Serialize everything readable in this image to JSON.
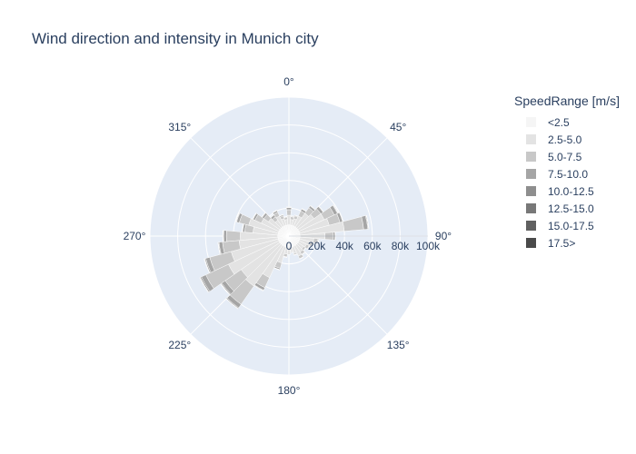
{
  "chart_data": {
    "type": "barpolar",
    "title": "Wind direction and intensity in Munich city",
    "radial_axis": {
      "range": [
        0,
        100000
      ],
      "ticks": [
        0,
        20000,
        40000,
        60000,
        80000,
        100000
      ],
      "tick_labels": [
        "0",
        "20k",
        "40k",
        "60k",
        "80k",
        "100k"
      ],
      "angle_deg": 90
    },
    "angular_axis": {
      "rotation": 90,
      "direction": "clockwise",
      "ticks": [
        0,
        45,
        90,
        135,
        180,
        225,
        270,
        315
      ],
      "tick_labels": [
        "0°",
        "45°",
        "90°",
        "135°",
        "180°",
        "225°",
        "270°",
        "315°"
      ]
    },
    "legend": {
      "title": "SpeedRange [m/s]",
      "placement": "right"
    },
    "directions": [
      0,
      10,
      20,
      30,
      40,
      50,
      60,
      70,
      80,
      90,
      100,
      110,
      120,
      130,
      140,
      150,
      160,
      170,
      180,
      190,
      200,
      210,
      220,
      230,
      240,
      250,
      260,
      270,
      280,
      290,
      300,
      310,
      320,
      330,
      340,
      350
    ],
    "series": [
      {
        "name": "<2.5",
        "color": "#f5f5f5",
        "values": [
          8000,
          8000,
          8000,
          8000,
          8000,
          8000,
          8000,
          8000,
          8000,
          8000,
          8000,
          8000,
          8000,
          8000,
          8000,
          8000,
          8000,
          8000,
          8000,
          8000,
          8000,
          8000,
          8000,
          8000,
          8000,
          8000,
          8000,
          8000,
          8000,
          8000,
          8000,
          8000,
          8000,
          8000,
          8000,
          8000
        ]
      },
      {
        "name": "2.5-5.0",
        "color": "#e3e3e3",
        "values": [
          7000,
          4000,
          5000,
          8000,
          12000,
          14000,
          20000,
          22000,
          32000,
          18000,
          10000,
          8000,
          6000,
          5000,
          6000,
          8000,
          5000,
          3000,
          4000,
          5000,
          12000,
          25000,
          36000,
          34000,
          40000,
          35000,
          28000,
          27000,
          18000,
          22000,
          14000,
          10000,
          6000,
          8000,
          5000,
          4000
        ]
      },
      {
        "name": "5.0-7.5",
        "color": "#c8c8c8",
        "values": [
          4000,
          2000,
          2000,
          4000,
          5000,
          6000,
          8000,
          8000,
          14000,
          6000,
          3000,
          2000,
          2000,
          1500,
          2000,
          2000,
          1000,
          800,
          1000,
          2000,
          4000,
          8000,
          16000,
          14000,
          18000,
          16000,
          12000,
          10000,
          6000,
          7000,
          5000,
          4000,
          3000,
          3000,
          2000,
          1500
        ]
      },
      {
        "name": "7.5-10.0",
        "color": "#a5a5a5",
        "values": [
          1500,
          500,
          500,
          1500,
          1500,
          2000,
          2500,
          2000,
          3000,
          1200,
          500,
          400,
          400,
          300,
          300,
          300,
          200,
          150,
          200,
          300,
          1000,
          2000,
          3000,
          3000,
          3500,
          3000,
          2500,
          2000,
          1500,
          2000,
          1500,
          1500,
          1500,
          1200,
          800,
          500
        ]
      },
      {
        "name": "10.0-12.5",
        "color": "#8e8e8e",
        "values": [
          300,
          100,
          100,
          300,
          300,
          300,
          400,
          300,
          500,
          200,
          100,
          100,
          80,
          60,
          60,
          60,
          40,
          30,
          40,
          60,
          200,
          400,
          600,
          600,
          800,
          700,
          500,
          400,
          300,
          400,
          300,
          300,
          300,
          300,
          200,
          100
        ]
      },
      {
        "name": "12.5-15.0",
        "color": "#787878",
        "values": [
          100,
          40,
          40,
          100,
          100,
          100,
          150,
          100,
          200,
          80,
          40,
          40,
          30,
          20,
          20,
          20,
          15,
          10,
          15,
          20,
          80,
          150,
          250,
          250,
          350,
          300,
          200,
          150,
          100,
          150,
          100,
          100,
          100,
          100,
          80,
          40
        ]
      },
      {
        "name": "15.0-17.5",
        "color": "#606060",
        "values": [
          50,
          20,
          20,
          50,
          50,
          50,
          60,
          50,
          80,
          30,
          20,
          20,
          10,
          10,
          10,
          10,
          5,
          5,
          5,
          10,
          30,
          60,
          100,
          100,
          150,
          120,
          80,
          60,
          40,
          60,
          40,
          40,
          40,
          40,
          30,
          20
        ]
      },
      {
        "name": "17.5>",
        "color": "#4a4a4a",
        "values": [
          30,
          10,
          10,
          30,
          30,
          30,
          40,
          30,
          50,
          20,
          10,
          10,
          5,
          5,
          5,
          5,
          3,
          3,
          3,
          5,
          20,
          40,
          80,
          80,
          120,
          100,
          60,
          40,
          30,
          40,
          30,
          30,
          30,
          30,
          20,
          10
        ]
      }
    ]
  }
}
